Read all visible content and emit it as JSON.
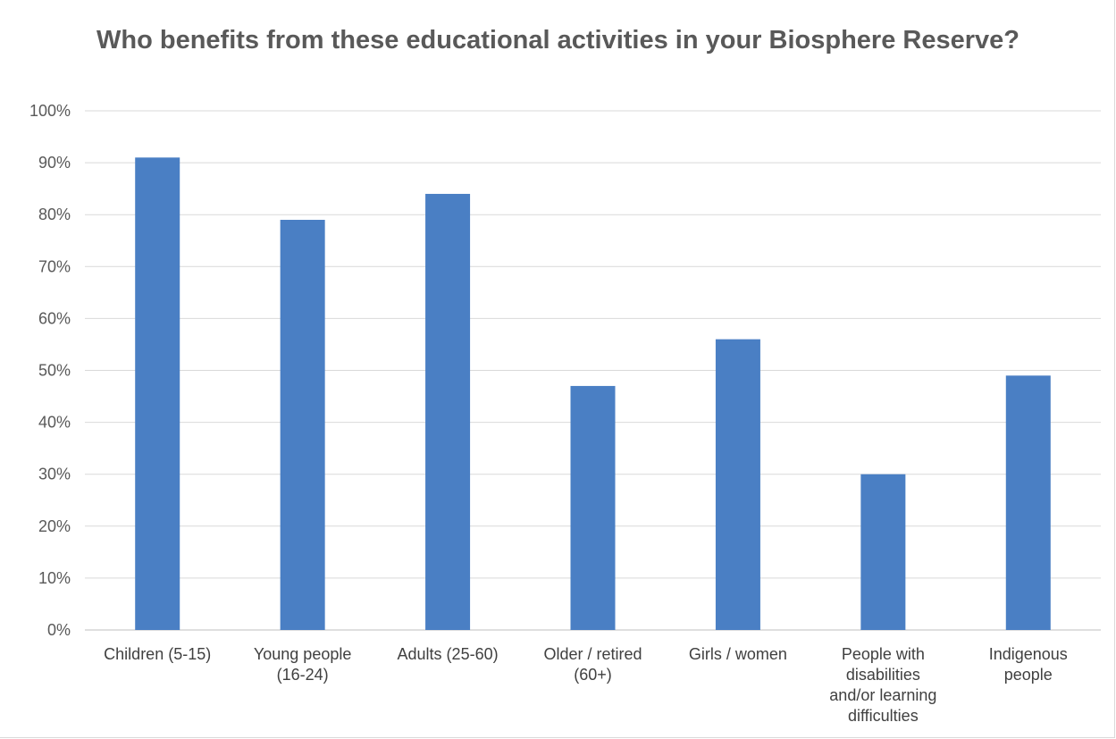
{
  "chart_data": {
    "type": "bar",
    "title": "Who benefits from these educational activities in your Biosphere Reserve?",
    "categories": [
      "Children (5-15)",
      "Young people (16-24)",
      "Adults (25-60)",
      "Older / retired (60+)",
      "Girls / women",
      "People with disabilities and/or learning difficulties",
      "Indigenous people"
    ],
    "category_lines": [
      [
        "Children (5-15)"
      ],
      [
        "Young people",
        "(16-24)"
      ],
      [
        "Adults (25-60)"
      ],
      [
        "Older / retired",
        "(60+)"
      ],
      [
        "Girls / women"
      ],
      [
        "People with",
        "disabilities",
        "and/or learning",
        "difficulties"
      ],
      [
        "Indigenous",
        "people"
      ]
    ],
    "values": [
      91,
      79,
      84,
      47,
      56,
      30,
      49
    ],
    "ylim": [
      0,
      100
    ],
    "yticks": [
      "0%",
      "10%",
      "20%",
      "30%",
      "40%",
      "50%",
      "60%",
      "70%",
      "80%",
      "90%",
      "100%"
    ],
    "bar_color": "#4a7fc4",
    "grid": true,
    "legend": "none"
  }
}
